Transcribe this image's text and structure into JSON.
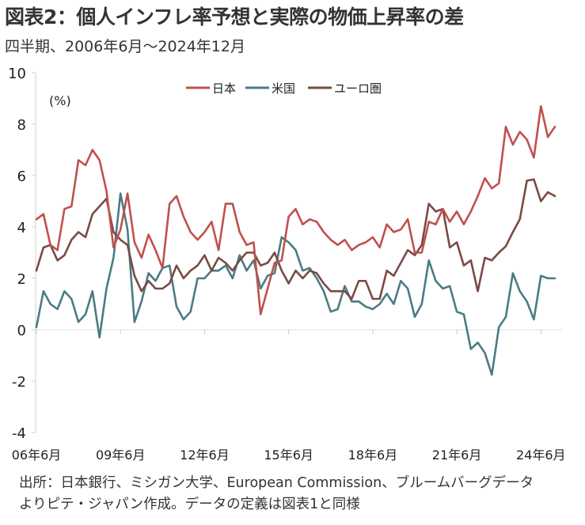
{
  "header": {
    "title": "図表2：個人インフレ率予想と実際の物価上昇率の差",
    "subtitle": "四半期、2006年6月～2024年12月"
  },
  "footer": {
    "source_line1": "出所：日本銀行、ミシガン大学、European Commission、ブルームバーグデータ",
    "source_line2": "よりピテ・ジャパン作成。データの定義は図表1と同様"
  },
  "chart_data": {
    "type": "line",
    "title": "図表2：個人インフレ率予想と実際の物価上昇率の差",
    "subtitle": "四半期、2006年6月～2024年12月",
    "xlabel": "",
    "ylabel": "(%)",
    "ylim": [
      -4,
      10
    ],
    "yticks": [
      -4,
      -2,
      0,
      2,
      4,
      6,
      8,
      10
    ],
    "x_tick_labels": [
      "06年6月",
      "09年6月",
      "12年6月",
      "15年6月",
      "18年6月",
      "21年6月",
      "24年6月"
    ],
    "x_tick_every": 12,
    "x_start": "2006-06",
    "x_end": "2024-12",
    "frequency": "quarterly",
    "grid": "zero-line only",
    "legend_position": "top-center",
    "series": [
      {
        "name": "日本",
        "color": "#c0504d",
        "values": [
          4.3,
          4.5,
          3.3,
          3.1,
          4.7,
          4.8,
          6.6,
          6.4,
          7.0,
          6.6,
          5.4,
          3.2,
          3.9,
          5.3,
          3.4,
          2.8,
          3.7,
          3.1,
          2.4,
          4.9,
          5.2,
          4.4,
          3.8,
          3.5,
          3.8,
          4.2,
          3.1,
          4.9,
          4.9,
          3.8,
          3.3,
          3.4,
          0.6,
          1.6,
          2.6,
          2.7,
          4.4,
          4.7,
          4.1,
          4.3,
          4.2,
          3.8,
          3.5,
          3.3,
          3.5,
          3.1,
          3.3,
          3.4,
          3.6,
          3.2,
          4.1,
          3.8,
          3.9,
          4.3,
          3.0,
          3.0,
          4.2,
          4.1,
          4.7,
          4.2,
          4.6,
          4.1,
          4.6,
          5.2,
          5.9,
          5.5,
          5.7,
          7.9,
          7.2,
          7.7,
          7.4,
          6.7,
          8.7,
          7.5,
          7.9
        ]
      },
      {
        "name": "米国",
        "color": "#4a7c84",
        "values": [
          0.1,
          1.5,
          1.0,
          0.8,
          1.5,
          1.2,
          0.3,
          0.6,
          1.5,
          -0.3,
          1.6,
          2.8,
          5.3,
          3.9,
          0.3,
          1.1,
          2.2,
          1.9,
          2.4,
          2.5,
          0.9,
          0.4,
          0.7,
          2.0,
          2.0,
          2.3,
          2.3,
          2.5,
          2.0,
          2.9,
          2.3,
          2.7,
          1.6,
          2.1,
          2.2,
          3.6,
          3.4,
          3.1,
          2.3,
          2.4,
          2.0,
          1.5,
          0.7,
          0.8,
          1.7,
          1.1,
          1.1,
          0.9,
          0.8,
          1.0,
          1.4,
          1.0,
          1.9,
          1.6,
          0.5,
          1.0,
          2.7,
          1.9,
          1.6,
          1.7,
          0.7,
          0.6,
          -0.75,
          -0.5,
          -0.9,
          -1.75,
          0.1,
          0.5,
          2.2,
          1.5,
          1.1,
          0.4,
          2.1,
          2.0,
          2.0
        ]
      },
      {
        "name": "ユーロ圏",
        "color": "#7b4a45",
        "values": [
          2.3,
          3.2,
          3.3,
          2.7,
          2.9,
          3.5,
          3.8,
          3.6,
          4.5,
          4.8,
          5.1,
          3.8,
          3.5,
          3.3,
          2.1,
          1.5,
          1.9,
          1.6,
          1.6,
          1.8,
          2.5,
          2.0,
          2.3,
          2.5,
          2.9,
          2.3,
          2.8,
          2.6,
          2.3,
          2.7,
          3.0,
          3.0,
          2.5,
          2.6,
          3.0,
          2.3,
          1.8,
          2.3,
          2.0,
          2.3,
          2.2,
          1.8,
          1.5,
          1.5,
          1.5,
          1.2,
          1.9,
          1.9,
          1.2,
          1.2,
          2.3,
          2.1,
          2.6,
          3.1,
          2.9,
          3.3,
          4.9,
          4.6,
          4.7,
          3.2,
          3.4,
          2.5,
          2.7,
          1.5,
          2.8,
          2.7,
          3.0,
          3.25,
          3.8,
          4.3,
          5.8,
          5.85,
          5.0,
          5.35,
          5.2
        ]
      }
    ]
  }
}
